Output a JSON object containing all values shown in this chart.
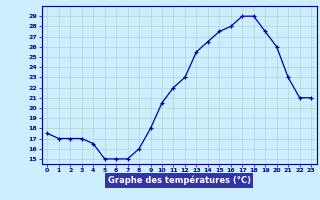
{
  "hours": [
    0,
    1,
    2,
    3,
    4,
    5,
    6,
    7,
    8,
    9,
    10,
    11,
    12,
    13,
    14,
    15,
    16,
    17,
    18,
    19,
    20,
    21,
    22,
    23
  ],
  "temps": [
    17.5,
    17.0,
    17.0,
    17.0,
    16.5,
    15.0,
    15.0,
    15.0,
    16.0,
    18.0,
    20.5,
    22.0,
    23.0,
    25.5,
    26.5,
    27.5,
    28.0,
    29.0,
    29.0,
    27.5,
    26.0,
    23.0,
    21.0,
    21.0
  ],
  "xlabel": "Graphe des températures (°C)",
  "ylabel_ticks": [
    15,
    16,
    17,
    18,
    19,
    20,
    21,
    22,
    23,
    24,
    25,
    26,
    27,
    28,
    29
  ],
  "ylim": [
    14.5,
    30.0
  ],
  "xlim": [
    -0.5,
    23.5
  ],
  "bg_color": "#cceeff",
  "grid_color": "#aacccc",
  "line_color": "#0000aa",
  "marker_color": "#0000aa",
  "axis_label_color": "#0000cc",
  "tick_color": "#0000aa",
  "spine_color": "#0000aa",
  "xlabel_bg": "#3333aa",
  "xlabel_text_color": "#ffffff"
}
